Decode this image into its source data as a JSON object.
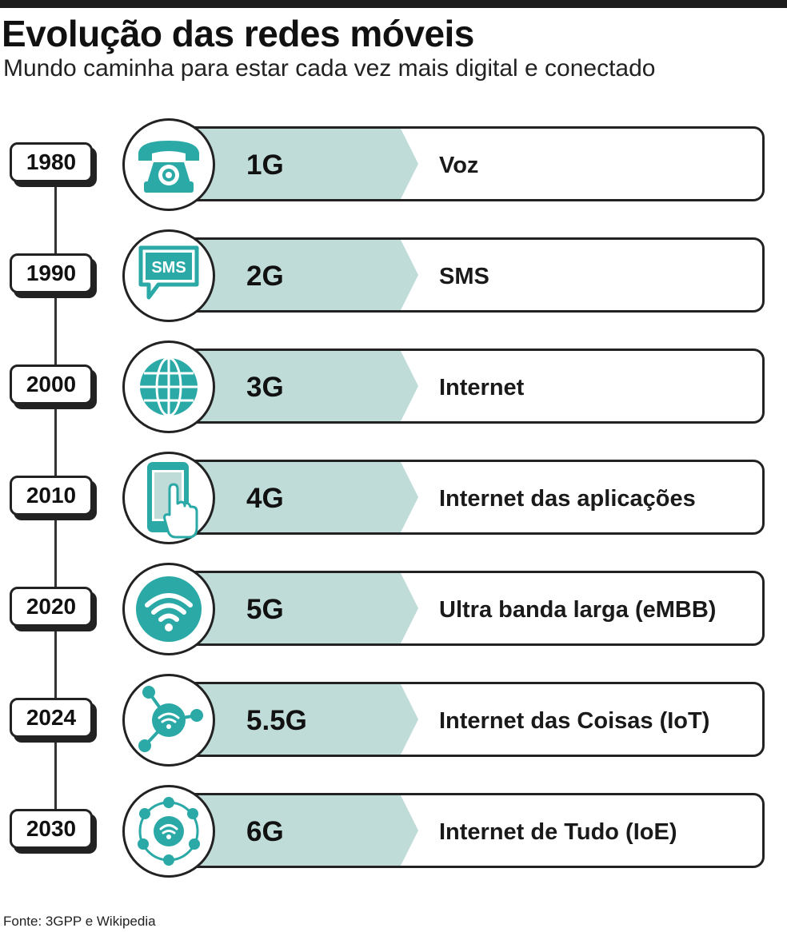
{
  "header": {
    "title": "Evolução das redes móveis",
    "subtitle": "Mundo caminha para estar cada vez mais digital e conectado"
  },
  "colors": {
    "teal": "#2aa9a7",
    "band": "#bfdcd9",
    "ink": "#222222"
  },
  "rows": [
    {
      "year": "1980",
      "generation": "1G",
      "description": "Voz",
      "icon": "telephone-icon"
    },
    {
      "year": "1990",
      "generation": "2G",
      "description": "SMS",
      "icon": "sms-bubble-icon",
      "icon_text": "SMS"
    },
    {
      "year": "2000",
      "generation": "3G",
      "description": "Internet",
      "icon": "globe-icon"
    },
    {
      "year": "2010",
      "generation": "4G",
      "description": "Internet das aplicações",
      "icon": "smartphone-touch-icon"
    },
    {
      "year": "2020",
      "generation": "5G",
      "description": "Ultra banda larga (eMBB)",
      "icon": "wifi-icon"
    },
    {
      "year": "2024",
      "generation": "5.5G",
      "description": "Internet das Coisas (IoT)",
      "icon": "iot-network-icon"
    },
    {
      "year": "2030",
      "generation": "6G",
      "description": "Internet de Tudo (IoE)",
      "icon": "ioe-network-icon"
    }
  ],
  "footer": {
    "source": "Fonte: 3GPP e Wikipedia"
  }
}
